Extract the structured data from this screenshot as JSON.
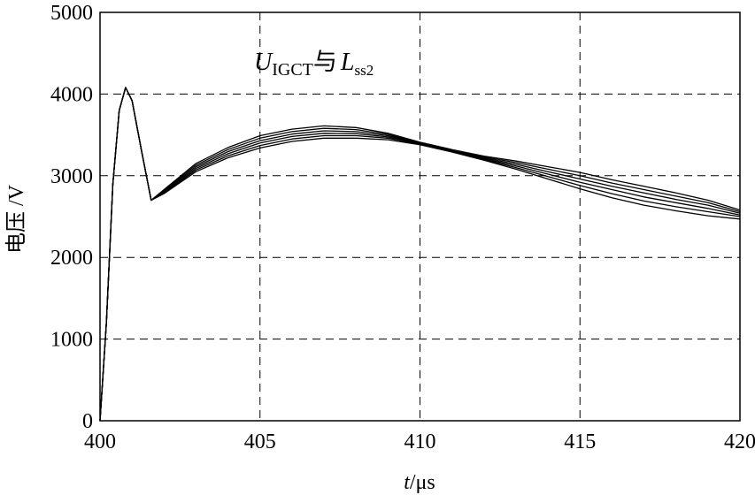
{
  "chart_data": {
    "type": "line",
    "title": "",
    "annotation": {
      "main": "U",
      "main_sub": "IGCT",
      "connector": "与",
      "second": "L",
      "second_sub": "ss2"
    },
    "xlabel_italic": "t",
    "xlabel_rest": "/μs",
    "ylabel": "电压 /V",
    "xlim": [
      400,
      420
    ],
    "ylim": [
      0,
      5000
    ],
    "x_ticks": [
      "400",
      "405",
      "410",
      "415",
      "420"
    ],
    "y_ticks": [
      "0",
      "1000",
      "2000",
      "3000",
      "4000",
      "5000"
    ],
    "grid": true,
    "series": [
      {
        "x": [
          400,
          400.2,
          400.4,
          400.6,
          400.8,
          401.0,
          401.3,
          401.6,
          402,
          403,
          404,
          405,
          406,
          407,
          408,
          409,
          410,
          411,
          412,
          413,
          414,
          415,
          416,
          417,
          418,
          419,
          420
        ],
        "y": [
          0,
          1200,
          2900,
          3800,
          4080,
          3920,
          3300,
          2700,
          2780,
          3050,
          3220,
          3340,
          3420,
          3460,
          3460,
          3440,
          3380,
          3290,
          3190,
          3080,
          2960,
          2840,
          2730,
          2640,
          2570,
          2510,
          2470
        ]
      },
      {
        "x": [
          400,
          400.2,
          400.4,
          400.6,
          400.8,
          401.0,
          401.3,
          401.6,
          402,
          403,
          404,
          405,
          406,
          407,
          408,
          409,
          410,
          411,
          412,
          413,
          414,
          415,
          416,
          417,
          418,
          419,
          420
        ],
        "y": [
          0,
          1200,
          2900,
          3800,
          4080,
          3920,
          3300,
          2700,
          2790,
          3070,
          3245,
          3370,
          3450,
          3490,
          3490,
          3460,
          3390,
          3300,
          3200,
          3100,
          2990,
          2880,
          2780,
          2690,
          2620,
          2560,
          2500
        ]
      },
      {
        "x": [
          400,
          400.2,
          400.4,
          400.6,
          400.8,
          401.0,
          401.3,
          401.6,
          402,
          403,
          404,
          405,
          406,
          407,
          408,
          409,
          410,
          411,
          412,
          413,
          414,
          415,
          416,
          417,
          418,
          419,
          420
        ],
        "y": [
          0,
          1200,
          2900,
          3800,
          4080,
          3920,
          3300,
          2700,
          2800,
          3090,
          3270,
          3400,
          3480,
          3520,
          3515,
          3475,
          3395,
          3305,
          3210,
          3120,
          3020,
          2920,
          2830,
          2740,
          2670,
          2600,
          2520
        ]
      },
      {
        "x": [
          400,
          400.2,
          400.4,
          400.6,
          400.8,
          401.0,
          401.3,
          401.6,
          402,
          403,
          404,
          405,
          406,
          407,
          408,
          409,
          410,
          411,
          412,
          413,
          414,
          415,
          416,
          417,
          418,
          419,
          420
        ],
        "y": [
          0,
          1200,
          2900,
          3800,
          4080,
          3920,
          3300,
          2700,
          2810,
          3110,
          3295,
          3430,
          3510,
          3550,
          3540,
          3490,
          3400,
          3310,
          3220,
          3140,
          3050,
          2960,
          2870,
          2790,
          2710,
          2640,
          2540
        ]
      },
      {
        "x": [
          400,
          400.2,
          400.4,
          400.6,
          400.8,
          401.0,
          401.3,
          401.6,
          402,
          403,
          404,
          405,
          406,
          407,
          408,
          409,
          410,
          411,
          412,
          413,
          414,
          415,
          416,
          417,
          418,
          419,
          420
        ],
        "y": [
          0,
          1200,
          2900,
          3800,
          4080,
          3920,
          3300,
          2700,
          2820,
          3130,
          3320,
          3460,
          3540,
          3580,
          3565,
          3505,
          3405,
          3315,
          3230,
          3160,
          3080,
          3000,
          2910,
          2830,
          2750,
          2670,
          2560
        ]
      },
      {
        "x": [
          400,
          400.2,
          400.4,
          400.6,
          400.8,
          401.0,
          401.3,
          401.6,
          402,
          403,
          404,
          405,
          406,
          407,
          408,
          409,
          410,
          411,
          412,
          413,
          414,
          415,
          416,
          417,
          418,
          419,
          420
        ],
        "y": [
          0,
          1200,
          2900,
          3800,
          4080,
          3920,
          3300,
          2700,
          2830,
          3150,
          3345,
          3490,
          3570,
          3610,
          3590,
          3520,
          3410,
          3320,
          3240,
          3180,
          3110,
          3040,
          2950,
          2870,
          2790,
          2700,
          2580
        ]
      }
    ]
  }
}
